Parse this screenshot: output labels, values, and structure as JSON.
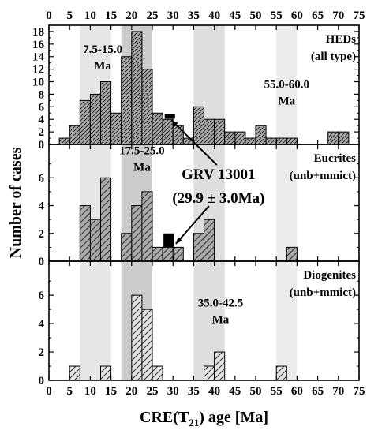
{
  "chart_data": {
    "type": "bar",
    "xlabel": "CRE(T",
    "xlabel_sub": "21",
    "xlabel_suffix": ") age [Ma]",
    "ylabel": "Number of cases",
    "xlim": [
      0,
      75
    ],
    "x_ticks": [
      0,
      5,
      10,
      15,
      20,
      25,
      30,
      35,
      40,
      45,
      50,
      55,
      60,
      65,
      70,
      75
    ],
    "bin_width": 2.5,
    "shaded_ranges": [
      {
        "from": 7.5,
        "to": 15.0,
        "color": "#e6e6e6"
      },
      {
        "from": 17.5,
        "to": 25.0,
        "color": "#cccccc"
      },
      {
        "from": 35.0,
        "to": 42.5,
        "color": "#dedede"
      },
      {
        "from": 55.0,
        "to": 60.0,
        "color": "#ececec"
      }
    ],
    "panels": [
      {
        "name": "HEDs",
        "label_lines": [
          "HEDs",
          "(all type)"
        ],
        "ylim": [
          0,
          19
        ],
        "y_ticks": [
          0,
          2,
          4,
          6,
          8,
          10,
          12,
          14,
          16,
          18
        ],
        "fill": "#a9a9a9",
        "hatch": "dense",
        "bins": [
          {
            "start": 2.5,
            "count": 1
          },
          {
            "start": 5.0,
            "count": 3
          },
          {
            "start": 7.5,
            "count": 7
          },
          {
            "start": 10.0,
            "count": 8
          },
          {
            "start": 12.5,
            "count": 10
          },
          {
            "start": 15.0,
            "count": 5
          },
          {
            "start": 17.5,
            "count": 14
          },
          {
            "start": 20.0,
            "count": 18
          },
          {
            "start": 22.5,
            "count": 12
          },
          {
            "start": 25.0,
            "count": 5
          },
          {
            "start": 27.5,
            "count": 4
          },
          {
            "start": 30.0,
            "count": 3
          },
          {
            "start": 32.5,
            "count": 1
          },
          {
            "start": 35.0,
            "count": 6
          },
          {
            "start": 37.5,
            "count": 4
          },
          {
            "start": 40.0,
            "count": 4
          },
          {
            "start": 42.5,
            "count": 2
          },
          {
            "start": 45.0,
            "count": 2
          },
          {
            "start": 47.5,
            "count": 1
          },
          {
            "start": 50.0,
            "count": 3
          },
          {
            "start": 52.5,
            "count": 1
          },
          {
            "start": 55.0,
            "count": 1
          },
          {
            "start": 57.5,
            "count": 1
          },
          {
            "start": 67.5,
            "count": 2
          },
          {
            "start": 70.0,
            "count": 2
          }
        ],
        "marker": {
          "x_from": 28.0,
          "x_to": 30.5,
          "y_from": 4.1,
          "y_to": 4.9
        }
      },
      {
        "name": "Eucrites",
        "label_lines": [
          "Eucrites",
          "(unb+mmict)"
        ],
        "ylim": [
          0,
          8.4
        ],
        "y_ticks": [
          0,
          2,
          4,
          6
        ],
        "fill": "#a9a9a9",
        "hatch": "sparse",
        "bins": [
          {
            "start": 7.5,
            "count": 4
          },
          {
            "start": 10.0,
            "count": 3
          },
          {
            "start": 12.5,
            "count": 6
          },
          {
            "start": 17.5,
            "count": 2
          },
          {
            "start": 20.0,
            "count": 4
          },
          {
            "start": 22.5,
            "count": 5
          },
          {
            "start": 25.0,
            "count": 1
          },
          {
            "start": 27.5,
            "count": 1
          },
          {
            "start": 30.0,
            "count": 1
          },
          {
            "start": 35.0,
            "count": 2
          },
          {
            "start": 37.5,
            "count": 3
          },
          {
            "start": 57.5,
            "count": 1
          }
        ],
        "marker": {
          "x_from": 27.7,
          "x_to": 30.3,
          "y_from": 1.0,
          "y_to": 2.0
        }
      },
      {
        "name": "Diogenites",
        "label_lines": [
          "Diogenites",
          "(unb+mmict)"
        ],
        "ylim": [
          0,
          8.4
        ],
        "y_ticks": [
          0,
          2,
          4,
          6
        ],
        "fill": "#e3e3e3",
        "hatch": "sparse",
        "bins": [
          {
            "start": 5.0,
            "count": 1
          },
          {
            "start": 12.5,
            "count": 1
          },
          {
            "start": 20.0,
            "count": 6
          },
          {
            "start": 22.5,
            "count": 5
          },
          {
            "start": 25.0,
            "count": 1
          },
          {
            "start": 37.5,
            "count": 1
          },
          {
            "start": 40.0,
            "count": 2
          },
          {
            "start": 55.0,
            "count": 1
          }
        ]
      }
    ],
    "annotations": [
      {
        "panel": 0,
        "x": 13.0,
        "y": 14.6,
        "lines": [
          "7.5-15.0",
          "Ma"
        ],
        "size": "anno"
      },
      {
        "panel": 0,
        "x": 57.5,
        "y": 9.0,
        "lines": [
          "55.0-60.0",
          "Ma"
        ],
        "size": "anno"
      },
      {
        "panel": 1,
        "x": 22.5,
        "y": 7.7,
        "lines": [
          "17.5-25.0",
          "Ma"
        ],
        "size": "anno"
      },
      {
        "panel": 2,
        "x": 41.5,
        "y": 5.2,
        "lines": [
          "35.0-42.5",
          "Ma"
        ],
        "size": "anno"
      }
    ],
    "callout": {
      "lines": [
        "GRV 13001",
        "(29.9 ± 3.0Ma)"
      ],
      "panel": 1,
      "x": 41.0,
      "y": 5.9
    }
  }
}
